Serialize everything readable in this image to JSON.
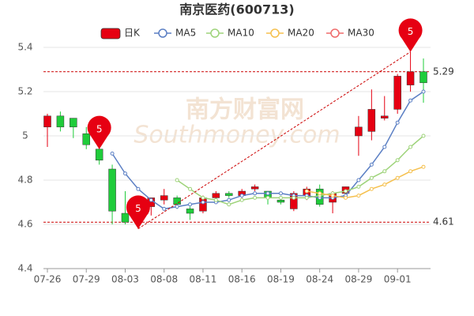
{
  "chart_data": {
    "type": "candlestick",
    "title": "南京医药(600713)",
    "watermark": "南方财富网",
    "watermark_sub": "Southmoney.com",
    "candle_name": "日K",
    "up_color": "#e60012",
    "down_color": "#1fcc3a",
    "categories": [
      "07-26",
      null,
      null,
      "07-29",
      null,
      null,
      "08-03",
      null,
      null,
      "08-08",
      null,
      null,
      "08-11",
      null,
      null,
      "08-16",
      null,
      null,
      "08-19",
      null,
      null,
      "08-24",
      null,
      null,
      "08-29",
      null,
      null,
      "09-01",
      null,
      null
    ],
    "open": [
      5.04,
      5.09,
      5.08,
      5.01,
      4.94,
      4.85,
      4.65,
      4.63,
      4.68,
      4.71,
      4.72,
      4.67,
      4.66,
      4.72,
      4.74,
      4.73,
      4.76,
      4.75,
      4.71,
      4.67,
      4.73,
      4.76,
      4.7,
      4.74,
      5.0,
      5.02,
      5.08,
      5.12,
      5.23,
      5.29
    ],
    "close": [
      5.09,
      5.04,
      5.04,
      4.96,
      4.89,
      4.66,
      4.61,
      4.67,
      4.72,
      4.73,
      4.69,
      4.65,
      4.72,
      4.74,
      4.73,
      4.75,
      4.77,
      4.72,
      4.7,
      4.74,
      4.76,
      4.69,
      4.74,
      4.77,
      5.04,
      5.12,
      5.09,
      5.27,
      5.29,
      5.24
    ],
    "high": [
      5.1,
      5.11,
      5.08,
      5.04,
      4.96,
      4.87,
      4.75,
      4.69,
      4.72,
      4.76,
      4.73,
      4.68,
      4.73,
      4.75,
      4.75,
      4.76,
      4.78,
      4.75,
      4.72,
      4.75,
      4.77,
      4.78,
      4.75,
      4.77,
      5.09,
      5.21,
      5.18,
      5.28,
      5.38,
      5.35
    ],
    "low": [
      4.95,
      5.02,
      4.99,
      4.94,
      4.87,
      4.6,
      4.6,
      4.58,
      4.64,
      4.69,
      4.67,
      4.62,
      4.65,
      4.7,
      4.72,
      4.72,
      4.75,
      4.69,
      4.69,
      4.66,
      4.71,
      4.68,
      4.65,
      4.72,
      4.91,
      4.98,
      5.07,
      5.1,
      5.2,
      5.15
    ],
    "series": [
      {
        "name": "MA5",
        "color": "#5b7fc4",
        "values": [
          null,
          null,
          null,
          null,
          null,
          4.92,
          4.83,
          4.76,
          4.71,
          4.67,
          4.68,
          4.69,
          4.7,
          4.7,
          4.71,
          4.73,
          4.74,
          4.74,
          4.74,
          4.73,
          4.73,
          4.72,
          4.72,
          4.73,
          4.8,
          4.87,
          4.95,
          5.06,
          5.16,
          5.2
        ]
      },
      {
        "name": "MA10",
        "color": "#9ed37a",
        "values": [
          null,
          null,
          null,
          null,
          null,
          null,
          null,
          null,
          null,
          null,
          4.8,
          4.76,
          4.72,
          4.71,
          4.69,
          4.71,
          4.72,
          4.72,
          4.72,
          4.72,
          4.72,
          4.73,
          4.74,
          4.75,
          4.77,
          4.81,
          4.84,
          4.89,
          4.95,
          5.0
        ]
      },
      {
        "name": "MA20",
        "color": "#f5c04e",
        "values": [
          null,
          null,
          null,
          null,
          null,
          null,
          null,
          null,
          null,
          null,
          null,
          null,
          null,
          null,
          null,
          null,
          null,
          null,
          null,
          null,
          4.75,
          4.74,
          4.73,
          4.72,
          4.73,
          4.76,
          4.78,
          4.81,
          4.84,
          4.86
        ]
      },
      {
        "name": "MA30",
        "color": "#ef6b6b",
        "values": [
          null,
          null,
          null,
          null,
          null,
          null,
          null,
          null,
          null,
          null,
          null,
          null,
          null,
          null,
          null,
          null,
          null,
          null,
          null,
          null,
          null,
          null,
          null,
          null,
          null,
          null,
          null,
          null,
          null,
          null
        ]
      }
    ],
    "ylim": [
      4.4,
      5.4
    ],
    "yticks": [
      4.4,
      4.6,
      4.8,
      5,
      5.2,
      5.4
    ],
    "grid": true,
    "ref_lines": [
      5.29,
      4.61
    ],
    "markers": [
      {
        "index": 4,
        "value": 4.94,
        "label": "5"
      },
      {
        "index": 7,
        "value": 4.58,
        "label": "5"
      },
      {
        "index": 28,
        "value": 5.38,
        "label": "5"
      }
    ]
  }
}
